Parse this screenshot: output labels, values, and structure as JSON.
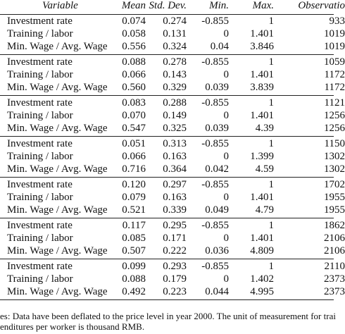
{
  "table": {
    "header": [
      "Variable",
      "Mean",
      "Std. Dev.",
      "Min.",
      "Max.",
      "Observatio"
    ],
    "groups": [
      [
        [
          "Investment rate",
          "0.074",
          "0.274",
          "-0.855",
          "1",
          "933"
        ],
        [
          "Training / labor",
          "0.058",
          "0.131",
          "0",
          "1.401",
          "1019"
        ],
        [
          "Min. Wage / Avg. Wage",
          "0.556",
          "0.324",
          "0.04",
          "3.846",
          "1019"
        ]
      ],
      [
        [
          "Investment rate",
          "0.088",
          "0.278",
          "-0.855",
          "1",
          "1059"
        ],
        [
          "Training / labor",
          "0.066",
          "0.143",
          "0",
          "1.401",
          "1172"
        ],
        [
          "Min. Wage / Avg. Wage",
          "0.560",
          "0.329",
          "0.039",
          "3.839",
          "1172"
        ]
      ],
      [
        [
          "Investment rate",
          "0.083",
          "0.288",
          "-0.855",
          "1",
          "1121"
        ],
        [
          "Training / labor",
          "0.070",
          "0.149",
          "0",
          "1.401",
          "1256"
        ],
        [
          "Min. Wage / Avg. Wage",
          "0.547",
          "0.325",
          "0.039",
          "4.39",
          "1256"
        ]
      ],
      [
        [
          "Investment rate",
          "0.051",
          "0.313",
          "-0.855",
          "1",
          "1150"
        ],
        [
          "Training / labor",
          "0.066",
          "0.163",
          "0",
          "1.399",
          "1302"
        ],
        [
          "Min. Wage / Avg. Wage",
          "0.716",
          "0.364",
          "0.042",
          "4.59",
          "1302"
        ]
      ],
      [
        [
          "Investment rate",
          "0.120",
          "0.297",
          "-0.855",
          "1",
          "1702"
        ],
        [
          "Training / labor",
          "0.079",
          "0.163",
          "0",
          "1.401",
          "1955"
        ],
        [
          "Min. Wage / Avg. Wage",
          "0.521",
          "0.339",
          "0.049",
          "4.79",
          "1955"
        ]
      ],
      [
        [
          "Investment rate",
          "0.117",
          "0.295",
          "-0.855",
          "1",
          "1862"
        ],
        [
          "Training / labor",
          "0.085",
          "0.171",
          "0",
          "1.401",
          "2106"
        ],
        [
          "Min. Wage / Avg. Wage",
          "0.507",
          "0.222",
          "0.036",
          "4.809",
          "2106"
        ]
      ],
      [
        [
          "Investment rate",
          "0.099",
          "0.293",
          "-0.855",
          "1",
          "2110"
        ],
        [
          "Training / labor",
          "0.088",
          "0.179",
          "0",
          "1.402",
          "2373"
        ],
        [
          "Min. Wage / Avg. Wage",
          "0.492",
          "0.223",
          "0.044",
          "4.995",
          "2373"
        ]
      ]
    ],
    "notes": [
      "es: Data have been deflated to the price level in year 2000.  The unit of measurement for trai",
      "enditures per worker is thousand RMB."
    ]
  }
}
